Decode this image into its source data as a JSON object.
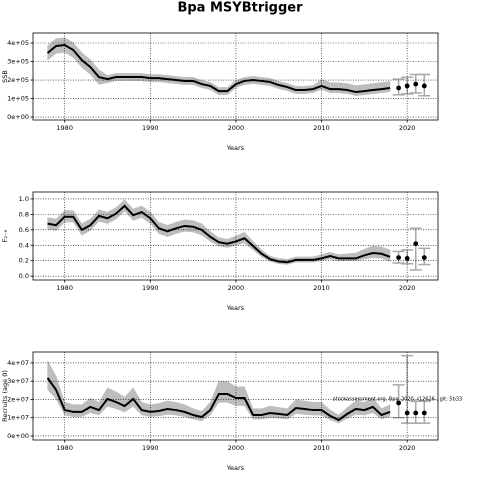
{
  "chart_data": [
    {
      "type": "line",
      "title": "Bpa MSYBtrigger",
      "ylabel": "SSB",
      "xlabel": "Years",
      "xlim": [
        1976.3,
        2023.6
      ],
      "xticks": [
        1980,
        1990,
        2000,
        2010,
        2020
      ],
      "ylim": [
        -16000,
        454000
      ],
      "yticks": [
        {
          "value": 0,
          "label": "0e+00"
        },
        {
          "value": 100000,
          "label": "1e+05"
        },
        {
          "value": 200000,
          "label": "2e+05"
        },
        {
          "value": 300000,
          "label": "3e+05"
        },
        {
          "value": 400000,
          "label": "4e+05"
        }
      ],
      "grid": true,
      "color": "#000000",
      "band_color": "#bdbdbd",
      "errorbar_color": "#a8a8a8",
      "x": [
        1978,
        1979,
        1980,
        1981,
        1982,
        1983,
        1984,
        1985,
        1986,
        1987,
        1988,
        1989,
        1990,
        1991,
        1992,
        1993,
        1994,
        1995,
        1996,
        1997,
        1998,
        1999,
        2000,
        2001,
        2002,
        2003,
        2004,
        2005,
        2006,
        2007,
        2008,
        2009,
        2010,
        2011,
        2012,
        2013,
        2014,
        2015,
        2016,
        2017,
        2018
      ],
      "values": [
        346000.0,
        384000.0,
        389000.0,
        362000.0,
        308000.0,
        270000.0,
        216000.0,
        205000.0,
        216000.0,
        216000.0,
        216000.0,
        216000.0,
        210000.0,
        210000.0,
        205000.0,
        200000.0,
        195000.0,
        195000.0,
        178000.0,
        168000.0,
        140000.0,
        140000.0,
        178000.0,
        195000.0,
        200000.0,
        195000.0,
        189000.0,
        173000.0,
        162000.0,
        146000.0,
        146000.0,
        151000.0,
        168000.0,
        151000.0,
        151000.0,
        146000.0,
        135000.0,
        140000.0,
        146000.0,
        151000.0,
        157000.0
      ],
      "lower": [
        306000.0,
        344000.0,
        349000.0,
        322000.0,
        268000.0,
        230000.0,
        176000.0,
        185000.0,
        196000.0,
        196000.0,
        196000.0,
        196000.0,
        190000.0,
        190000.0,
        185000.0,
        180000.0,
        175000.0,
        175000.0,
        158000.0,
        148000.0,
        120000.0,
        120000.0,
        158000.0,
        175000.0,
        180000.0,
        175000.0,
        169000.0,
        153000.0,
        142000.0,
        126000.0,
        126000.0,
        131000.0,
        148000.0,
        131000.0,
        131000.0,
        126000.0,
        115000.0,
        120000.0,
        126000.0,
        131000.0,
        137000.0
      ],
      "upper": [
        386000.0,
        424000.0,
        429000.0,
        402000.0,
        348000.0,
        310000.0,
        256000.0,
        225000.0,
        236000.0,
        236000.0,
        236000.0,
        236000.0,
        230000.0,
        230000.0,
        225000.0,
        220000.0,
        215000.0,
        215000.0,
        198000.0,
        188000.0,
        160000.0,
        160000.0,
        198000.0,
        215000.0,
        220000.0,
        215000.0,
        209000.0,
        193000.0,
        182000.0,
        166000.0,
        166000.0,
        171000.0,
        203000.0,
        186000.0,
        186000.0,
        181000.0,
        170000.0,
        175000.0,
        181000.0,
        186000.0,
        192000.0
      ],
      "points_x": [
        2019,
        2020,
        2021,
        2022
      ],
      "points": [
        157000.0,
        168000.0,
        178000.0,
        168000.0
      ],
      "points_lower": [
        120000.0,
        125000.0,
        130000.0,
        115000.0
      ],
      "points_upper": [
        205000.0,
        215000.0,
        230000.0,
        230000.0
      ]
    },
    {
      "type": "line",
      "ylabel": "F₂₋₆",
      "xlabel": "Years",
      "xlim": [
        1976.3,
        2023.6
      ],
      "xticks": [
        1980,
        1990,
        2000,
        2010,
        2020
      ],
      "ylim": [
        -0.05,
        1.09
      ],
      "yticks": [
        {
          "value": 0,
          "label": "0.0"
        },
        0.2,
        0.4,
        0.6,
        0.8,
        {
          "value": 1,
          "label": "1.0"
        }
      ],
      "grid": true,
      "color": "#000000",
      "band_color": "#bdbdbd",
      "errorbar_color": "#a8a8a8",
      "x": [
        1978,
        1979,
        1980,
        1981,
        1982,
        1983,
        1984,
        1985,
        1986,
        1987,
        1988,
        1989,
        1990,
        1991,
        1992,
        1993,
        1994,
        1995,
        1996,
        1997,
        1998,
        1999,
        2000,
        2001,
        2002,
        2003,
        2004,
        2005,
        2006,
        2007,
        2008,
        2009,
        2010,
        2011,
        2012,
        2013,
        2014,
        2015,
        2016,
        2017,
        2018
      ],
      "values": [
        0.68,
        0.66,
        0.77,
        0.77,
        0.6,
        0.66,
        0.78,
        0.75,
        0.81,
        0.91,
        0.79,
        0.83,
        0.75,
        0.62,
        0.58,
        0.62,
        0.65,
        0.64,
        0.6,
        0.51,
        0.44,
        0.42,
        0.45,
        0.49,
        0.39,
        0.29,
        0.22,
        0.19,
        0.18,
        0.21,
        0.21,
        0.21,
        0.23,
        0.26,
        0.23,
        0.23,
        0.23,
        0.27,
        0.3,
        0.29,
        0.25
      ],
      "lower": [
        0.61,
        0.59,
        0.7,
        0.7,
        0.53,
        0.59,
        0.71,
        0.68,
        0.74,
        0.84,
        0.72,
        0.76,
        0.68,
        0.55,
        0.51,
        0.55,
        0.58,
        0.57,
        0.53,
        0.45,
        0.39,
        0.37,
        0.4,
        0.43,
        0.34,
        0.25,
        0.19,
        0.16,
        0.15,
        0.18,
        0.18,
        0.18,
        0.2,
        0.22,
        0.2,
        0.2,
        0.2,
        0.22,
        0.24,
        0.23,
        0.19
      ],
      "upper": [
        0.76,
        0.74,
        0.85,
        0.85,
        0.68,
        0.74,
        0.86,
        0.83,
        0.89,
        0.99,
        0.87,
        0.91,
        0.83,
        0.7,
        0.66,
        0.7,
        0.73,
        0.72,
        0.68,
        0.58,
        0.5,
        0.48,
        0.52,
        0.57,
        0.45,
        0.34,
        0.26,
        0.23,
        0.22,
        0.25,
        0.25,
        0.25,
        0.28,
        0.31,
        0.28,
        0.29,
        0.3,
        0.35,
        0.39,
        0.38,
        0.34
      ],
      "points_x": [
        2019,
        2020,
        2021,
        2022
      ],
      "points": [
        0.24,
        0.23,
        0.42,
        0.24
      ],
      "points_lower": [
        0.17,
        0.16,
        0.08,
        0.15
      ],
      "points_upper": [
        0.32,
        0.34,
        0.62,
        0.36
      ]
    },
    {
      "type": "line",
      "ylabel": "Recruits (age 0)",
      "xlabel": "Years",
      "annotation": "stockassessment.org, Bpa_2020, r12626 , git: 5b33",
      "xlim": [
        1976.3,
        2023.6
      ],
      "xticks": [
        1980,
        1990,
        2000,
        2010,
        2020
      ],
      "ylim": [
        -2200000.0,
        46000000.0
      ],
      "yticks": [
        {
          "value": 0,
          "label": "0e+00"
        },
        {
          "value": 10000000.0,
          "label": "1e+07"
        },
        {
          "value": 20000000.0,
          "label": "2e+07"
        },
        {
          "value": 30000000.0,
          "label": "3e+07"
        },
        {
          "value": 40000000.0,
          "label": "4e+07"
        }
      ],
      "grid": true,
      "color": "#000000",
      "band_color": "#bdbdbd",
      "errorbar_color": "#a8a8a8",
      "x": [
        1978,
        1979,
        1980,
        1981,
        1982,
        1983,
        1984,
        1985,
        1986,
        1987,
        1988,
        1989,
        1990,
        1991,
        1992,
        1993,
        1994,
        1995,
        1996,
        1997,
        1998,
        1999,
        2000,
        2001,
        2002,
        2003,
        2004,
        2005,
        2006,
        2007,
        2008,
        2009,
        2010,
        2011,
        2012,
        2013,
        2014,
        2015,
        2016,
        2017,
        2018
      ],
      "values": [
        31800000.0,
        25200000.0,
        14200000.0,
        13200000.0,
        13200000.0,
        15900000.0,
        14200000.0,
        20300000.0,
        18600000.0,
        16400000.0,
        20300000.0,
        14200000.0,
        13200000.0,
        13700000.0,
        14800000.0,
        14200000.0,
        13200000.0,
        11500000.0,
        10400000.0,
        14200000.0,
        23000000.0,
        23000000.0,
        20800000.0,
        20800000.0,
        11500000.0,
        11500000.0,
        12600000.0,
        12100000.0,
        11500000.0,
        15300000.0,
        14800000.0,
        14200000.0,
        14200000.0,
        11000000.0,
        8800000.0,
        12100000.0,
        14800000.0,
        14200000.0,
        15900000.0,
        11500000.0,
        13200000.0
      ],
      "lower": [
        25400000.0,
        20200000.0,
        11400000.0,
        10600000.0,
        10600000.0,
        12700000.0,
        11400000.0,
        16200000.0,
        14900000.0,
        13100000.0,
        16200000.0,
        11400000.0,
        10600000.0,
        11000000.0,
        11800000.0,
        11400000.0,
        10600000.0,
        9200000.0,
        8300000.0,
        11400000.0,
        18400000.0,
        18400000.0,
        16600000.0,
        16600000.0,
        9200000.0,
        9200000.0,
        10100000.0,
        9700000.0,
        9200000.0,
        12200000.0,
        11800000.0,
        11400000.0,
        11400000.0,
        8800000.0,
        7000000.0,
        9700000.0,
        11800000.0,
        11400000.0,
        12700000.0,
        9200000.0,
        10600000.0
      ],
      "upper": [
        41300000.0,
        32800000.0,
        18500000.0,
        17200000.0,
        17200000.0,
        20700000.0,
        18500000.0,
        26400000.0,
        24200000.0,
        21300000.0,
        26400000.0,
        18500000.0,
        17200000.0,
        17800000.0,
        19200000.0,
        18500000.0,
        17200000.0,
        15000000.0,
        13500000.0,
        18500000.0,
        29900000.0,
        29900000.0,
        27000000.0,
        27000000.0,
        15000000.0,
        15000000.0,
        16400000.0,
        15700000.0,
        15000000.0,
        19900000.0,
        19200000.0,
        18500000.0,
        18500000.0,
        14300000.0,
        11400000.0,
        15700000.0,
        19200000.0,
        18500000.0,
        20700000.0,
        15000000.0,
        17200000.0
      ],
      "points_x": [
        2019,
        2020,
        2021,
        2022
      ],
      "points": [
        18100000.0,
        12600000.0,
        12600000.0,
        12600000.0
      ],
      "points_lower": [
        10000000.0,
        7000000.0,
        7000000.0,
        7000000.0
      ],
      "points_upper": [
        28000000.0,
        44000000.0,
        19000000.0,
        19000000.0
      ]
    }
  ]
}
